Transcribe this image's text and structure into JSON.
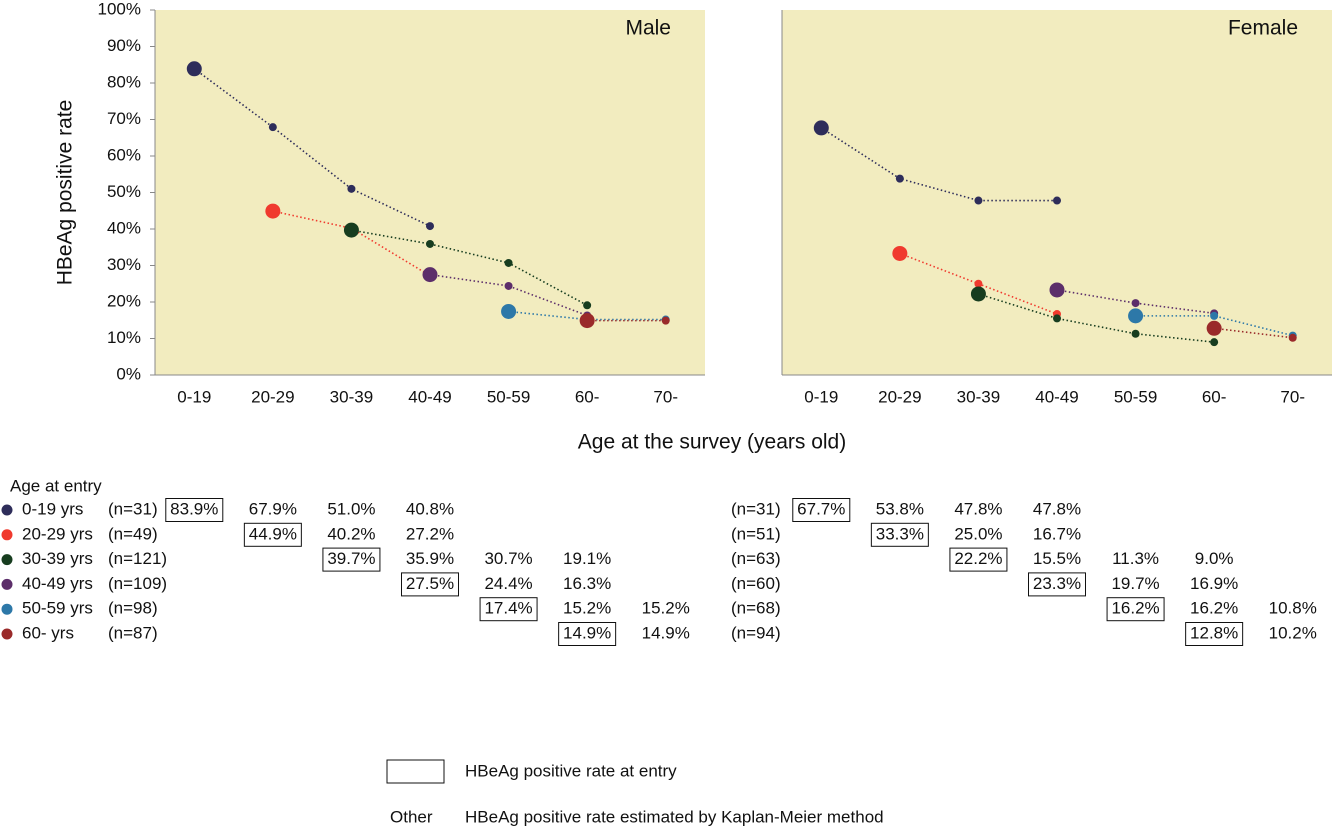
{
  "chart_data": [
    {
      "type": "line",
      "title": "Male",
      "ylabel": "HBeAg positive rate",
      "xlabel": "Age at the survey (years old)",
      "legend_title": "Age at entry",
      "categories": [
        "0-19",
        "20-29",
        "30-39",
        "40-49",
        "50-59",
        "60-",
        "70-"
      ],
      "ylim": [
        0,
        100
      ],
      "yticks": [
        {
          "value": 0,
          "label": "0%"
        },
        {
          "value": 10,
          "label": "10%"
        },
        {
          "value": 20,
          "label": "20%"
        },
        {
          "value": 30,
          "label": "30%"
        },
        {
          "value": 40,
          "label": "40%"
        },
        {
          "value": 50,
          "label": "50%"
        },
        {
          "value": 60,
          "label": "60%"
        },
        {
          "value": 70,
          "label": "70%"
        },
        {
          "value": 80,
          "label": "80%"
        },
        {
          "value": 90,
          "label": "90%"
        },
        {
          "value": 100,
          "label": "100%"
        }
      ],
      "series": [
        {
          "name": "0-19 yrs",
          "n_label": "(n=31)",
          "color": "#2e2d5a",
          "values": [
            83.9,
            67.9,
            51.0,
            40.8,
            null,
            null,
            null
          ],
          "value_labels": [
            "83.9%",
            "67.9%",
            "51.0%",
            "40.8%",
            null,
            null,
            null
          ]
        },
        {
          "name": "20-29 yrs",
          "n_label": "(n=49)",
          "color": "#f03a2e",
          "values": [
            null,
            44.9,
            40.2,
            27.2,
            null,
            null,
            null
          ],
          "value_labels": [
            null,
            "44.9%",
            "40.2%",
            "27.2%",
            null,
            null,
            null
          ]
        },
        {
          "name": "30-39 yrs",
          "n_label": "(n=121)",
          "color": "#173d1f",
          "values": [
            null,
            null,
            39.7,
            35.9,
            30.7,
            19.1,
            null
          ],
          "value_labels": [
            null,
            null,
            "39.7%",
            "35.9%",
            "30.7%",
            "19.1%",
            null
          ]
        },
        {
          "name": "40-49 yrs",
          "n_label": "(n=109)",
          "color": "#5c2e6a",
          "values": [
            null,
            null,
            null,
            27.5,
            24.4,
            16.3,
            null
          ],
          "value_labels": [
            null,
            null,
            null,
            "27.5%",
            "24.4%",
            "16.3%",
            null
          ]
        },
        {
          "name": "50-59 yrs",
          "n_label": "(n=98)",
          "color": "#2d78a8",
          "values": [
            null,
            null,
            null,
            null,
            17.4,
            15.2,
            15.2
          ],
          "value_labels": [
            null,
            null,
            null,
            null,
            "17.4%",
            "15.2%",
            "15.2%"
          ]
        },
        {
          "name": "60- yrs",
          "n_label": "(n=87)",
          "color": "#9a2a2a",
          "values": [
            null,
            null,
            null,
            null,
            null,
            14.9,
            14.9
          ],
          "value_labels": [
            null,
            null,
            null,
            null,
            null,
            "14.9%",
            "14.9%"
          ]
        }
      ]
    },
    {
      "type": "line",
      "title": "Female",
      "categories": [
        "0-19",
        "20-29",
        "30-39",
        "40-49",
        "50-59",
        "60-",
        "70-"
      ],
      "ylim": [
        0,
        100
      ],
      "series": [
        {
          "n_label": "(n=31)",
          "color": "#2e2d5a",
          "values": [
            67.7,
            53.8,
            47.8,
            47.8,
            null,
            null,
            null
          ],
          "value_labels": [
            "67.7%",
            "53.8%",
            "47.8%",
            "47.8%",
            null,
            null,
            null
          ]
        },
        {
          "n_label": "(n=51)",
          "color": "#f03a2e",
          "values": [
            null,
            33.3,
            25.0,
            16.7,
            null,
            null,
            null
          ],
          "value_labels": [
            null,
            "33.3%",
            "25.0%",
            "16.7%",
            null,
            null,
            null
          ]
        },
        {
          "n_label": "(n=63)",
          "color": "#173d1f",
          "values": [
            null,
            null,
            22.2,
            15.5,
            11.3,
            9.0,
            null
          ],
          "value_labels": [
            null,
            null,
            "22.2%",
            "15.5%",
            "11.3%",
            "9.0%",
            null
          ]
        },
        {
          "n_label": "(n=60)",
          "color": "#5c2e6a",
          "values": [
            null,
            null,
            null,
            23.3,
            19.7,
            16.9,
            null
          ],
          "value_labels": [
            null,
            null,
            null,
            "23.3%",
            "19.7%",
            "16.9%",
            null
          ]
        },
        {
          "n_label": "(n=68)",
          "color": "#2d78a8",
          "values": [
            null,
            null,
            null,
            null,
            16.2,
            16.2,
            10.8
          ],
          "value_labels": [
            null,
            null,
            null,
            null,
            "16.2%",
            "16.2%",
            "10.8%"
          ]
        },
        {
          "n_label": "(n=94)",
          "color": "#9a2a2a",
          "values": [
            null,
            null,
            null,
            null,
            null,
            12.8,
            10.2
          ],
          "value_labels": [
            null,
            null,
            null,
            null,
            null,
            "12.8%",
            "10.2%"
          ]
        }
      ]
    }
  ],
  "footnote": {
    "box_label": "HBeAg positive rate at entry",
    "other_term": "Other",
    "other_label": "HBeAg positive rate estimated by Kaplan-Meier method"
  }
}
